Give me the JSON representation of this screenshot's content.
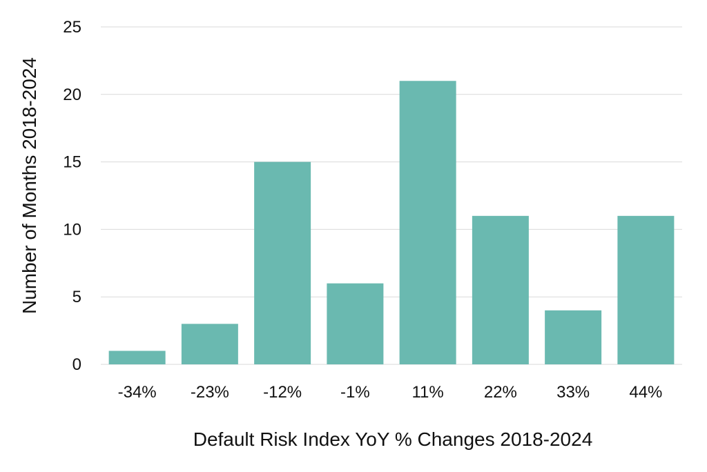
{
  "chart_data": {
    "type": "bar",
    "title": "",
    "xlabel": "Default Risk Index YoY % Changes 2018-2024",
    "ylabel": "Number of Months 2018-2024",
    "categories": [
      "-34%",
      "-23%",
      "-12%",
      "-1%",
      "11%",
      "22%",
      "33%",
      "44%"
    ],
    "values": [
      1,
      3,
      15,
      6,
      21,
      11,
      4,
      11
    ],
    "ylim": [
      0,
      25
    ],
    "yticks": [
      0,
      5,
      10,
      15,
      20,
      25
    ],
    "grid": true,
    "legend": "none",
    "bar_color": "#6ab9b0",
    "grid_color": "#d9d9d9"
  }
}
